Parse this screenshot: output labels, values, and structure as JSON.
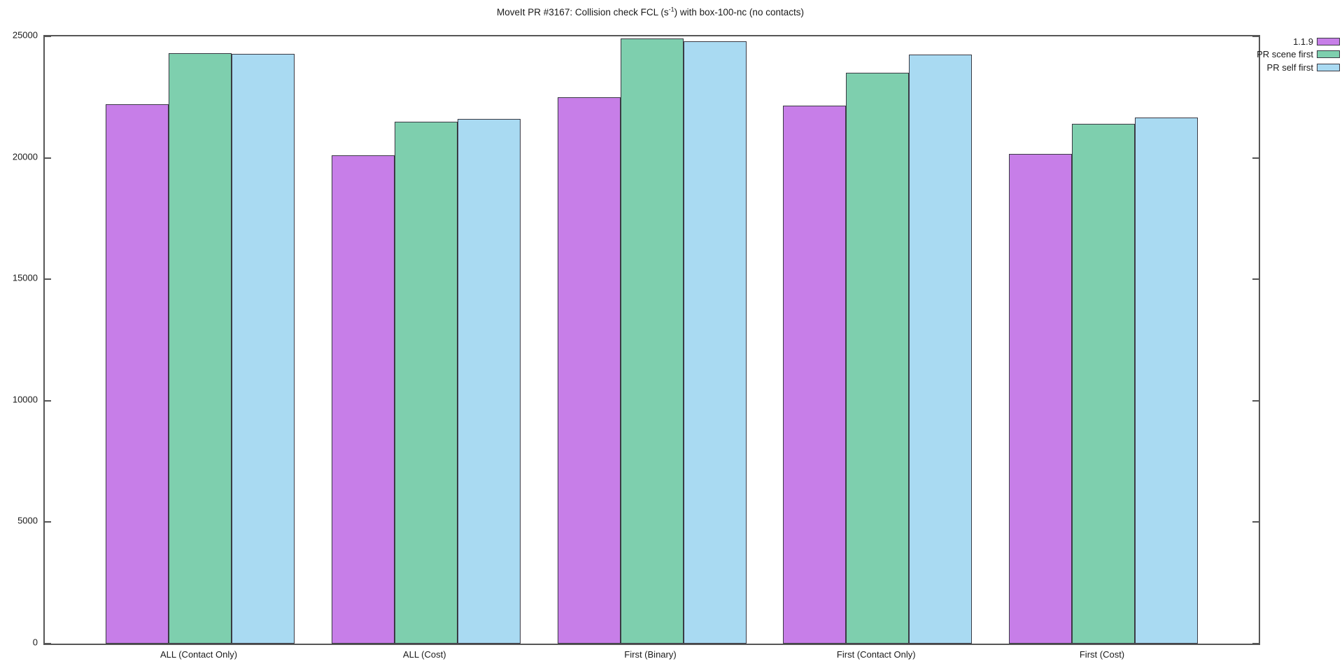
{
  "chart_data": {
    "type": "bar",
    "title": "MoveIt PR #3167: Collision check FCL (s-1) with box-100-nc (no contacts)",
    "title_parts": {
      "pre": "MoveIt PR #3167: Collision check FCL (s",
      "sup": "-1",
      "post": ") with box-100-nc (no contacts)"
    },
    "categories": [
      "ALL (Contact Only)",
      "ALL (Cost)",
      "First (Binary)",
      "First (Contact Only)",
      "First (Cost)"
    ],
    "series": [
      {
        "name": "1.1.9",
        "color": "#c77ee8",
        "values": [
          22200,
          20100,
          22500,
          22150,
          20150
        ]
      },
      {
        "name": "PR scene first",
        "color": "#7ecfae",
        "values": [
          24300,
          21500,
          24900,
          23500,
          21400
        ]
      },
      {
        "name": "PR self first",
        "color": "#a9daf2",
        "values": [
          24280,
          21600,
          24800,
          24250,
          21650
        ]
      }
    ],
    "xlabel": "",
    "ylabel": "",
    "ylim": [
      0,
      25000
    ],
    "ytick_step": 5000,
    "ytick_labels": [
      "0",
      "5000",
      "10000",
      "15000",
      "20000",
      "25000"
    ],
    "grid": false,
    "legend_position": "top-right-outside",
    "bar_border_color": "#3a3a44",
    "axis_color": "#565656",
    "text_color": "#1a1a1a"
  }
}
